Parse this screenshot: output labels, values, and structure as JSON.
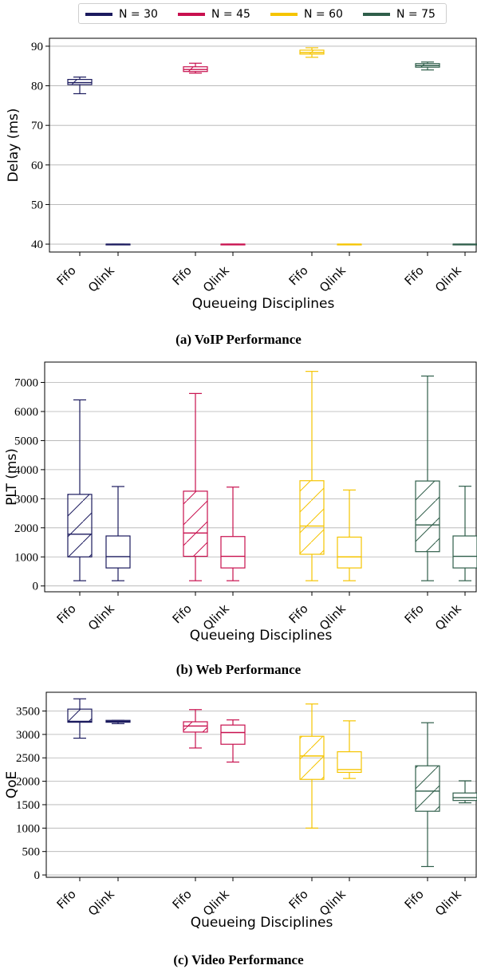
{
  "legend": {
    "items": [
      {
        "label": "N = 30",
        "color": "#1b1a5e"
      },
      {
        "label": "N = 45",
        "color": "#c8104e"
      },
      {
        "label": "N = 60",
        "color": "#f5c400"
      },
      {
        "label": "N = 75",
        "color": "#2f5e4a"
      }
    ]
  },
  "captions": {
    "a": "(a) VoIP Performance",
    "b": "(b) Web Performance",
    "c": "(c) Video Performance"
  },
  "chart_data": [
    {
      "type": "box",
      "ylabel": "Delay (ms)",
      "xlabel": "Queueing Disciplines",
      "ylim": [
        38,
        92
      ],
      "yticks": [
        40,
        50,
        60,
        70,
        80,
        90
      ],
      "grid": "horizontal",
      "categories": [
        "Fifo",
        "Qlink",
        "Fifo",
        "Qlink",
        "Fifo",
        "Qlink",
        "Fifo",
        "Qlink"
      ],
      "boxes": [
        {
          "group": "N = 30",
          "discipline": "Fifo",
          "min": 78.0,
          "q1": 80.3,
          "median": 80.8,
          "q3": 81.6,
          "max": 82.2,
          "hatch": true
        },
        {
          "group": "N = 30",
          "discipline": "Qlink",
          "min": 40.0,
          "q1": 40.0,
          "median": 40.0,
          "q3": 40.0,
          "max": 40.0,
          "hatch": false
        },
        {
          "group": "N = 45",
          "discipline": "Fifo",
          "min": 83.2,
          "q1": 83.6,
          "median": 84.1,
          "q3": 84.8,
          "max": 85.7,
          "hatch": true
        },
        {
          "group": "N = 45",
          "discipline": "Qlink",
          "min": 40.0,
          "q1": 40.0,
          "median": 40.0,
          "q3": 40.0,
          "max": 40.0,
          "hatch": false
        },
        {
          "group": "N = 60",
          "discipline": "Fifo",
          "min": 87.2,
          "q1": 88.0,
          "median": 88.4,
          "q3": 89.0,
          "max": 89.6,
          "hatch": true
        },
        {
          "group": "N = 60",
          "discipline": "Qlink",
          "min": 40.0,
          "q1": 40.0,
          "median": 40.0,
          "q3": 40.0,
          "max": 40.0,
          "hatch": false
        },
        {
          "group": "N = 75",
          "discipline": "Fifo",
          "min": 84.0,
          "q1": 84.7,
          "median": 85.1,
          "q3": 85.6,
          "max": 86.0,
          "hatch": true
        },
        {
          "group": "N = 75",
          "discipline": "Qlink",
          "min": 40.0,
          "q1": 40.0,
          "median": 40.0,
          "q3": 40.0,
          "max": 40.0,
          "hatch": false
        }
      ]
    },
    {
      "type": "box",
      "ylabel": "PLT (ms)",
      "xlabel": "Queueing Disciplines",
      "ylim": [
        -200,
        7700
      ],
      "yticks": [
        0,
        1000,
        2000,
        3000,
        4000,
        5000,
        6000,
        7000
      ],
      "grid": "horizontal",
      "categories": [
        "Fifo",
        "Qlink",
        "Fifo",
        "Qlink",
        "Fifo",
        "Qlink",
        "Fifo",
        "Qlink"
      ],
      "boxes": [
        {
          "group": "N = 30",
          "discipline": "Fifo",
          "min": 180,
          "q1": 1000,
          "median": 1780,
          "q3": 3150,
          "max": 6400,
          "hatch": true
        },
        {
          "group": "N = 30",
          "discipline": "Qlink",
          "min": 180,
          "q1": 620,
          "median": 1010,
          "q3": 1720,
          "max": 3420,
          "hatch": false
        },
        {
          "group": "N = 45",
          "discipline": "Fifo",
          "min": 180,
          "q1": 1020,
          "median": 1820,
          "q3": 3260,
          "max": 6620,
          "hatch": true
        },
        {
          "group": "N = 45",
          "discipline": "Qlink",
          "min": 180,
          "q1": 620,
          "median": 1020,
          "q3": 1700,
          "max": 3400,
          "hatch": false
        },
        {
          "group": "N = 60",
          "discipline": "Fifo",
          "min": 180,
          "q1": 1090,
          "median": 2060,
          "q3": 3620,
          "max": 7380,
          "hatch": true
        },
        {
          "group": "N = 60",
          "discipline": "Qlink",
          "min": 180,
          "q1": 620,
          "median": 1000,
          "q3": 1680,
          "max": 3300,
          "hatch": false
        },
        {
          "group": "N = 75",
          "discipline": "Fifo",
          "min": 180,
          "q1": 1180,
          "median": 2100,
          "q3": 3610,
          "max": 7220,
          "hatch": true
        },
        {
          "group": "N = 75",
          "discipline": "Qlink",
          "min": 180,
          "q1": 620,
          "median": 1020,
          "q3": 1720,
          "max": 3430,
          "hatch": false
        }
      ]
    },
    {
      "type": "box",
      "ylabel": "QoE",
      "xlabel": "Queueing Disciplines",
      "ylim": [
        -50,
        3900
      ],
      "yticks": [
        0,
        500,
        1000,
        1500,
        2000,
        2500,
        3000,
        3500
      ],
      "grid": "horizontal",
      "categories": [
        "Fifo",
        "Qlink",
        "Fifo",
        "Qlink",
        "Fifo",
        "Qlink",
        "Fifo",
        "Qlink"
      ],
      "boxes": [
        {
          "group": "N = 30",
          "discipline": "Fifo",
          "min": 2920,
          "q1": 3260,
          "median": 3280,
          "q3": 3540,
          "max": 3760,
          "hatch": true
        },
        {
          "group": "N = 30",
          "discipline": "Qlink",
          "min": 3230,
          "q1": 3260,
          "median": 3280,
          "q3": 3300,
          "max": 3300,
          "hatch": false
        },
        {
          "group": "N = 45",
          "discipline": "Fifo",
          "min": 2710,
          "q1": 3050,
          "median": 3180,
          "q3": 3270,
          "max": 3530,
          "hatch": true
        },
        {
          "group": "N = 45",
          "discipline": "Qlink",
          "min": 2410,
          "q1": 2790,
          "median": 3040,
          "q3": 3200,
          "max": 3310,
          "hatch": false
        },
        {
          "group": "N = 60",
          "discipline": "Fifo",
          "min": 1000,
          "q1": 2040,
          "median": 2540,
          "q3": 2960,
          "max": 3650,
          "hatch": true
        },
        {
          "group": "N = 60",
          "discipline": "Qlink",
          "min": 2060,
          "q1": 2190,
          "median": 2250,
          "q3": 2630,
          "max": 3290,
          "hatch": false
        },
        {
          "group": "N = 75",
          "discipline": "Fifo",
          "min": 180,
          "q1": 1360,
          "median": 1790,
          "q3": 2330,
          "max": 3250,
          "hatch": true
        },
        {
          "group": "N = 75",
          "discipline": "Qlink",
          "min": 1540,
          "q1": 1590,
          "median": 1650,
          "q3": 1750,
          "max": 2010,
          "hatch": false
        }
      ]
    }
  ]
}
